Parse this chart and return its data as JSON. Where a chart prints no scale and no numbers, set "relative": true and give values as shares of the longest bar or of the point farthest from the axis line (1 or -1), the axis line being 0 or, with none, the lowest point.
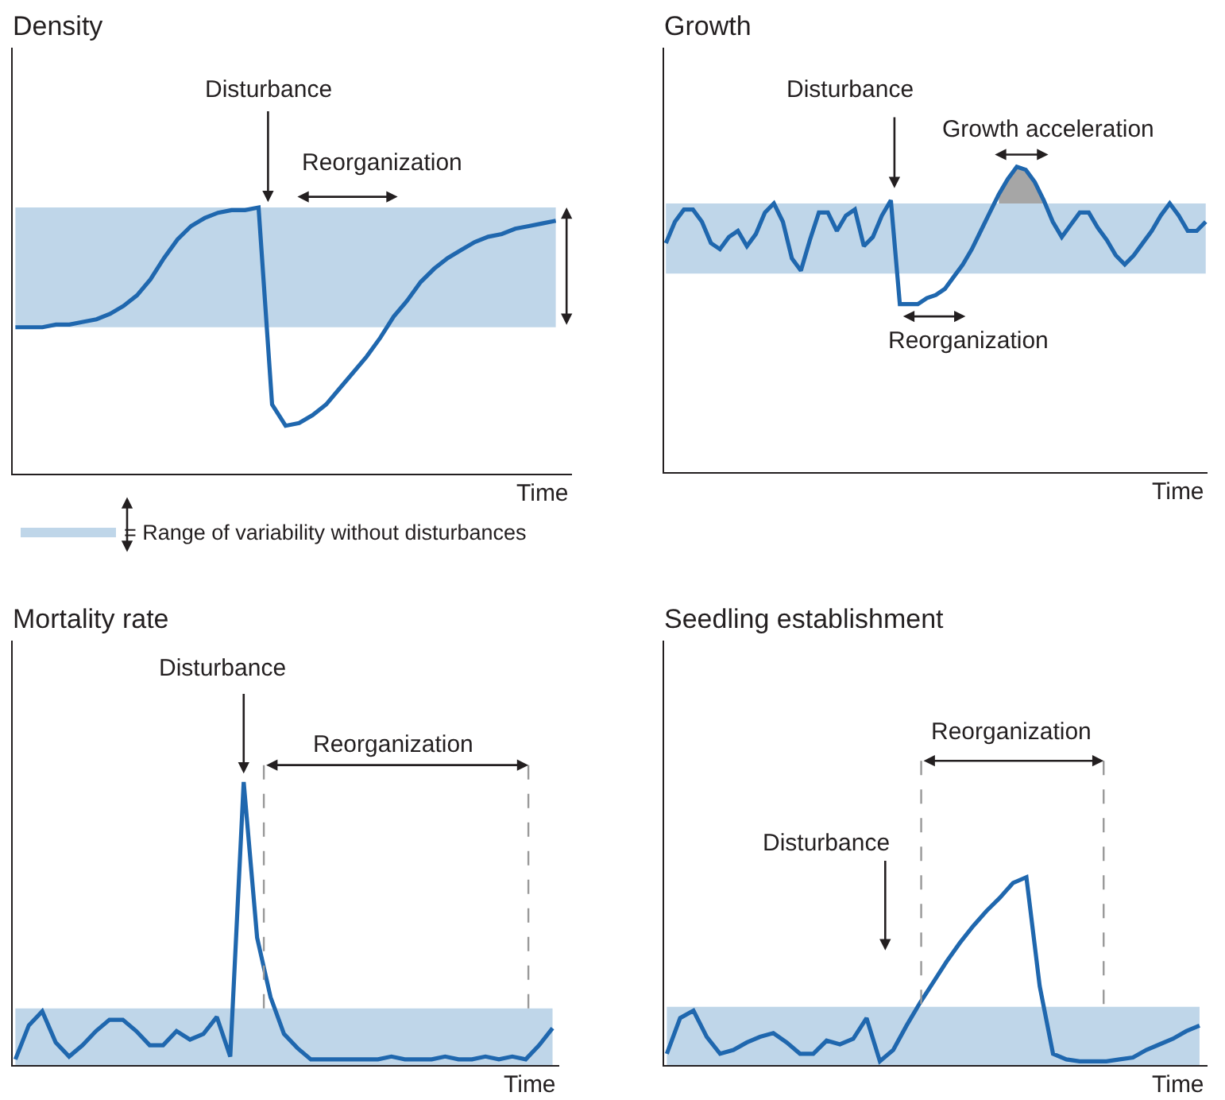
{
  "chart_data": [
    {
      "type": "line",
      "ylabel": "Density",
      "xlabel": "Time",
      "relative": true,
      "legend": "bottom left",
      "categories": [
        null,
        null,
        null,
        null,
        null,
        null,
        null,
        null,
        null,
        null,
        null,
        null,
        null,
        null,
        null,
        null,
        null,
        null,
        null,
        null,
        null,
        null,
        null,
        null,
        null,
        null,
        null,
        null,
        null,
        null,
        null,
        null,
        null,
        null,
        null,
        null,
        null,
        null,
        null,
        null,
        null
      ],
      "series": [
        {
          "color": "#1f67ae",
          "values": [
            0.55,
            0.55,
            0.55,
            0.56,
            0.56,
            0.57,
            0.58,
            0.6,
            0.63,
            0.67,
            0.73,
            0.81,
            0.88,
            0.93,
            0.96,
            0.98,
            0.99,
            0.99,
            1.0,
            0.26,
            0.18,
            0.19,
            0.22,
            0.26,
            0.32,
            0.38,
            0.44,
            0.51,
            0.59,
            0.65,
            0.72,
            0.77,
            0.81,
            0.84,
            0.87,
            0.89,
            0.9,
            0.92,
            0.93,
            0.94,
            0.95
          ]
        }
      ],
      "bands": [
        {
          "axis": "y",
          "from": 0.55,
          "to": 1.0,
          "color": "#bfd6e9",
          "label": "= Range of variability without disturbances"
        }
      ],
      "annotations": [
        "Disturbance",
        "Reorganization"
      ]
    },
    {
      "type": "line",
      "ylabel": "Growth",
      "xlabel": "Time",
      "relative": true,
      "categories": [
        null,
        null,
        null,
        null,
        null,
        null,
        null,
        null,
        null,
        null,
        null,
        null,
        null,
        null,
        null,
        null,
        null,
        null,
        null,
        null,
        null,
        null,
        null,
        null,
        null,
        null,
        null,
        null,
        null,
        null,
        null,
        null,
        null,
        null,
        null,
        null,
        null,
        null,
        null,
        null,
        null,
        null,
        null,
        null,
        null,
        null,
        null,
        null,
        null,
        null,
        null,
        null,
        null,
        null,
        null,
        null,
        null,
        null,
        null,
        null,
        null
      ],
      "series": [
        {
          "type": "area",
          "color": "#a6a6a6",
          "values": [
            null,
            null,
            null,
            null,
            null,
            null,
            null,
            null,
            null,
            null,
            null,
            null,
            null,
            null,
            null,
            null,
            null,
            null,
            null,
            null,
            null,
            null,
            null,
            null,
            null,
            null,
            null,
            null,
            null,
            null,
            null,
            null,
            null,
            null,
            null,
            null,
            null,
            0.91,
            0.96,
            1.0,
            0.99,
            0.95,
            0.89,
            null,
            null,
            null,
            null,
            null,
            null,
            null,
            null,
            null,
            null,
            null,
            null,
            null,
            null,
            null,
            null,
            null,
            null
          ]
        },
        {
          "color": "#1f67ae",
          "values": [
            0.75,
            0.82,
            0.86,
            0.86,
            0.82,
            0.75,
            0.73,
            0.77,
            0.79,
            0.74,
            0.78,
            0.85,
            0.88,
            0.82,
            0.7,
            0.66,
            0.76,
            0.85,
            0.85,
            0.79,
            0.84,
            0.86,
            0.74,
            0.77,
            0.84,
            0.89,
            0.55,
            0.55,
            0.55,
            0.57,
            0.58,
            0.6,
            0.64,
            0.68,
            0.73,
            0.79,
            0.85,
            0.91,
            0.96,
            1.0,
            0.99,
            0.95,
            0.89,
            0.82,
            0.77,
            0.81,
            0.85,
            0.85,
            0.8,
            0.76,
            0.71,
            0.68,
            0.71,
            0.75,
            0.79,
            0.84,
            0.88,
            0.84,
            0.79,
            0.79,
            0.82
          ]
        }
      ],
      "bands": [
        {
          "axis": "y",
          "from": 0.65,
          "to": 0.88,
          "color": "#bfd6e9"
        }
      ],
      "annotations": [
        "Disturbance",
        "Growth acceleration",
        "Reorganization"
      ]
    },
    {
      "type": "line",
      "ylabel": "Mortality rate",
      "xlabel": "Time",
      "relative": true,
      "categories": [
        null,
        null,
        null,
        null,
        null,
        null,
        null,
        null,
        null,
        null,
        null,
        null,
        null,
        null,
        null,
        null,
        null,
        null,
        null,
        null,
        null,
        null,
        null,
        null,
        null,
        null,
        null,
        null,
        null,
        null,
        null,
        null,
        null,
        null,
        null,
        null,
        null,
        null,
        null,
        null,
        null
      ],
      "series": [
        {
          "color": "#1f67ae",
          "values": [
            0.02,
            0.14,
            0.19,
            0.08,
            0.03,
            0.07,
            0.12,
            0.16,
            0.16,
            0.12,
            0.07,
            0.07,
            0.12,
            0.09,
            0.11,
            0.17,
            0.03,
            1.0,
            0.45,
            0.24,
            0.11,
            0.06,
            0.02,
            0.02,
            0.02,
            0.02,
            0.02,
            0.02,
            0.03,
            0.02,
            0.02,
            0.02,
            0.03,
            0.02,
            0.02,
            0.03,
            0.02,
            0.03,
            0.02,
            0.07,
            0.13
          ]
        }
      ],
      "bands": [
        {
          "axis": "y",
          "from": 0.0,
          "to": 0.2,
          "color": "#bfd6e9"
        }
      ],
      "annotations": [
        "Disturbance",
        "Reorganization"
      ]
    },
    {
      "type": "line",
      "ylabel": "Seedling establishment",
      "xlabel": "Time",
      "relative": true,
      "categories": [
        null,
        null,
        null,
        null,
        null,
        null,
        null,
        null,
        null,
        null,
        null,
        null,
        null,
        null,
        null,
        null,
        null,
        null,
        null,
        null,
        null,
        null,
        null,
        null,
        null,
        null,
        null,
        null,
        null,
        null,
        null,
        null,
        null,
        null,
        null,
        null,
        null,
        null,
        null,
        null,
        null
      ],
      "series": [
        {
          "color": "#1f67ae",
          "values": [
            0.06,
            0.25,
            0.29,
            0.15,
            0.06,
            0.08,
            0.12,
            0.15,
            0.17,
            0.12,
            0.06,
            0.06,
            0.13,
            0.11,
            0.14,
            0.25,
            0.02,
            0.08,
            0.21,
            0.33,
            0.44,
            0.55,
            0.65,
            0.74,
            0.82,
            0.89,
            0.97,
            1.0,
            0.42,
            0.06,
            0.03,
            0.02,
            0.02,
            0.02,
            0.03,
            0.04,
            0.08,
            0.11,
            0.14,
            0.18,
            0.21
          ]
        }
      ],
      "bands": [
        {
          "axis": "y",
          "from": 0.0,
          "to": 0.31,
          "color": "#bfd6e9"
        }
      ],
      "annotations": [
        "Disturbance",
        "Reorganization"
      ]
    }
  ]
}
